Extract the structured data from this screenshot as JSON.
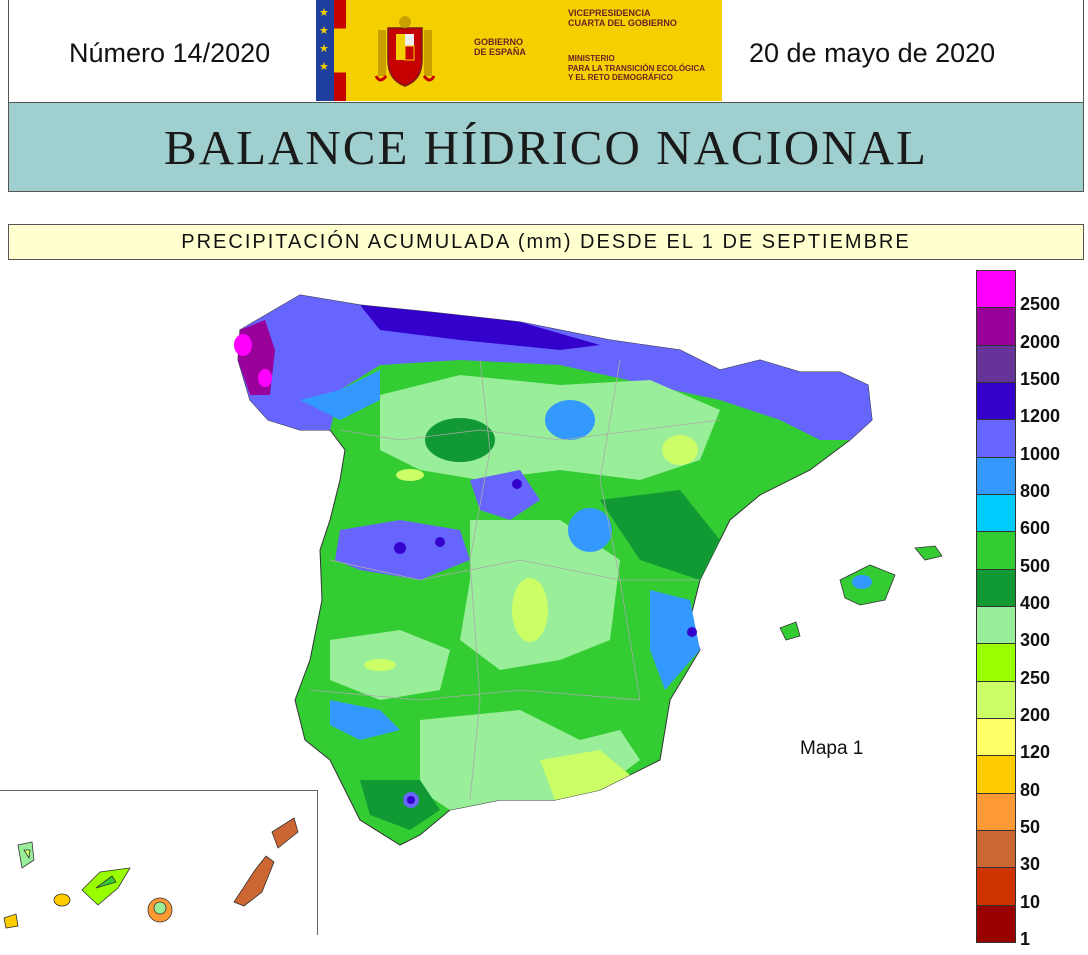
{
  "header": {
    "issue": "Número 14/2020",
    "date": "20 de mayo de 2020",
    "logo": {
      "gobierno": "GOBIERNO\nDE ESPAÑA",
      "vicepresidencia": "VICEPRESIDENCIA\nCUARTA DEL GOBIERNO",
      "ministerio": "MINISTERIO\nPARA LA TRANSICIÓN ECOLÓGICA\nY EL RETO DEMOGRÁFICO"
    }
  },
  "title": "BALANCE HÍDRICO NACIONAL",
  "subtitle": "PRECIPITACIÓN ACUMULADA (mm) DESDE EL 1 DE SEPTIEMBRE",
  "map_label": "Mapa 1",
  "legend": [
    {
      "label": "2500",
      "color": "#ff00ff"
    },
    {
      "label": "2000",
      "color": "#990099"
    },
    {
      "label": "1500",
      "color": "#663399"
    },
    {
      "label": "1200",
      "color": "#3300cc"
    },
    {
      "label": "1000",
      "color": "#6666ff"
    },
    {
      "label": "800",
      "color": "#3399ff"
    },
    {
      "label": "600",
      "color": "#00ccff"
    },
    {
      "label": "500",
      "color": "#33cc33"
    },
    {
      "label": "400",
      "color": "#119933"
    },
    {
      "label": "300",
      "color": "#99ee99"
    },
    {
      "label": "250",
      "color": "#99ff00"
    },
    {
      "label": "200",
      "color": "#ccff66"
    },
    {
      "label": "120",
      "color": "#ffff66"
    },
    {
      "label": "80",
      "color": "#ffcc00"
    },
    {
      "label": "50",
      "color": "#ff9933"
    },
    {
      "label": "30",
      "color": "#cc6633"
    },
    {
      "label": "10",
      "color": "#cc3300"
    },
    {
      "label": "1",
      "color": "#990000"
    }
  ]
}
